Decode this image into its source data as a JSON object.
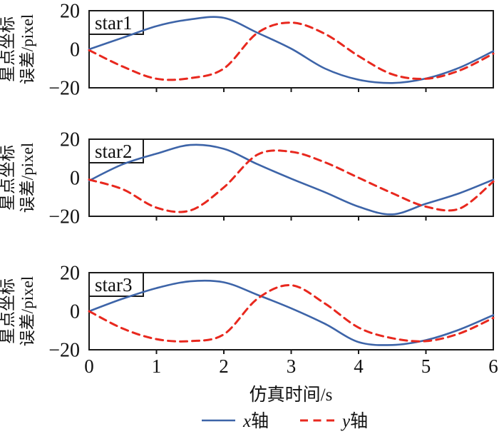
{
  "figure": {
    "background": "#ffffff",
    "frame_color": "#1a1a1a",
    "xlabel": "仿真时间/s",
    "ylabel_line1": "星点坐标",
    "ylabel_line2": "误差/pixel",
    "x_tick_labels": [
      "0",
      "1",
      "2",
      "3",
      "4",
      "5",
      "6"
    ],
    "y_tick_labels": [
      "20",
      "0",
      "−20"
    ]
  },
  "legend": {
    "items": [
      {
        "var": "x",
        "suffix": "轴",
        "label": "x轴",
        "color": "#3d64a8",
        "style": "solid"
      },
      {
        "var": "y",
        "suffix": "轴",
        "label": "y轴",
        "color": "#e8281e",
        "style": "dashed"
      }
    ]
  },
  "chart_data": {
    "type": "line",
    "title": "",
    "xlabel": "仿真时间/s",
    "ylabel": "星点坐标误差/pixel",
    "xlim": [
      0,
      6
    ],
    "ylim": [
      -20,
      20
    ],
    "x_ticks": [
      0,
      1,
      2,
      3,
      4,
      5,
      6
    ],
    "y_ticks": [
      20,
      0,
      -20
    ],
    "grid": false,
    "legend_position": "bottom-center",
    "x": [
      0,
      0.5,
      1,
      1.5,
      2,
      2.5,
      3,
      3.5,
      4,
      4.5,
      5,
      5.5,
      6
    ],
    "subplots": [
      {
        "label": "star1",
        "series": [
          {
            "name": "x轴",
            "style": "solid",
            "color": "#3d64a8",
            "values": [
              0,
              6,
              12,
              15.5,
              16.3,
              8.5,
              0.3,
              -10,
              -15.8,
              -17.5,
              -15.2,
              -9.5,
              -1
            ]
          },
          {
            "name": "y轴",
            "style": "dashed",
            "color": "#e8281e",
            "values": [
              -0.5,
              -9,
              -15.3,
              -15,
              -10,
              8.5,
              13.8,
              8,
              -3.5,
              -13,
              -15.3,
              -11,
              -2.3
            ]
          }
        ]
      },
      {
        "label": "star2",
        "series": [
          {
            "name": "x轴",
            "style": "solid",
            "color": "#3d64a8",
            "values": [
              -1.5,
              7,
              12.5,
              17,
              15,
              7,
              -0.5,
              -7.5,
              -15,
              -19,
              -13.5,
              -8,
              -1
            ]
          },
          {
            "name": "y轴",
            "style": "dashed",
            "color": "#e8281e",
            "values": [
              -1,
              -6,
              -15.5,
              -17,
              -5,
              12,
              13.5,
              8,
              0,
              -8,
              -15,
              -16,
              -2
            ]
          }
        ]
      },
      {
        "label": "star3",
        "series": [
          {
            "name": "x轴",
            "style": "solid",
            "color": "#3d64a8",
            "values": [
              0,
              6.5,
              12,
              15.5,
              15,
              8.5,
              1.5,
              -6.5,
              -16,
              -17.5,
              -15,
              -9.5,
              -2
            ]
          },
          {
            "name": "y轴",
            "style": "dashed",
            "color": "#e8281e",
            "values": [
              0,
              -9,
              -14.5,
              -15.5,
              -12,
              6.5,
              13.5,
              4,
              -8.5,
              -14,
              -15.5,
              -11.5,
              -3.5
            ]
          }
        ]
      }
    ]
  }
}
